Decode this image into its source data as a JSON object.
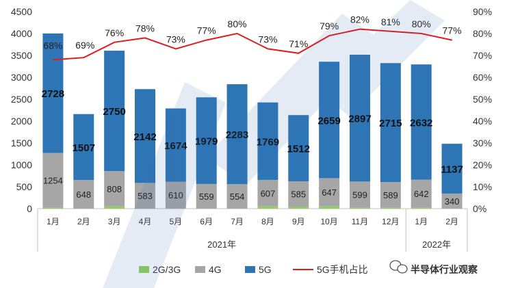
{
  "chart_data": {
    "type": "bar",
    "stacked": true,
    "categories": [
      "1月",
      "2月",
      "3月",
      "4月",
      "5月",
      "6月",
      "7月",
      "8月",
      "9月",
      "10月",
      "11月",
      "12月",
      "1月",
      "2月"
    ],
    "year_groups": [
      {
        "label": "2021年",
        "start": 0,
        "end": 11
      },
      {
        "label": "2022年",
        "start": 12,
        "end": 13
      }
    ],
    "series": [
      {
        "name": "2G/3G",
        "kind": "bar",
        "color": "#8fd15a",
        "values": [
          20,
          5,
          50,
          5,
          5,
          5,
          5,
          50,
          40,
          50,
          20,
          20,
          20,
          5
        ]
      },
      {
        "name": "4G",
        "kind": "bar",
        "color": "#a6a6a6",
        "values": [
          1254,
          648,
          808,
          583,
          610,
          559,
          554,
          607,
          585,
          647,
          599,
          589,
          642,
          340
        ]
      },
      {
        "name": "5G",
        "kind": "bar",
        "color": "#2e75b6",
        "values": [
          2728,
          1507,
          2750,
          2142,
          1674,
          1979,
          2283,
          1769,
          1512,
          2659,
          2897,
          2715,
          2632,
          1137
        ]
      },
      {
        "name": "5G手机占比",
        "kind": "line",
        "axis": "right",
        "color": "#e31a1c",
        "values": [
          68,
          69,
          76,
          78,
          73,
          77,
          80,
          73,
          71,
          79,
          82,
          81,
          80,
          77
        ]
      }
    ],
    "bar_labels": {
      "4G": [
        "1254",
        "648",
        "808",
        "583",
        "610",
        "559",
        "554",
        "607",
        "585",
        "647",
        "599",
        "589",
        "642",
        "340"
      ],
      "5G": [
        "2728",
        "1507",
        "2750",
        "2142",
        "1674",
        "1979",
        "2283",
        "1769",
        "1512",
        "2659",
        "2897",
        "2715",
        "2632",
        "1137"
      ],
      "line": [
        "68%",
        "69%",
        "76%",
        "78%",
        "73%",
        "77%",
        "80%",
        "73%",
        "71%",
        "79%",
        "82%",
        "81%",
        "80%",
        "77%"
      ]
    },
    "y_left": {
      "min": 0,
      "max": 4500,
      "ticks": [
        "0",
        "500",
        "1000",
        "1500",
        "2000",
        "2500",
        "3000",
        "3500",
        "4000",
        "4500"
      ]
    },
    "y_right": {
      "min": 0,
      "max": 90,
      "ticks": [
        "0%",
        "10%",
        "20%",
        "30%",
        "40%",
        "50%",
        "60%",
        "70%",
        "80%",
        "90%"
      ]
    },
    "grid": false,
    "legend_position": "bottom"
  },
  "watermark": {
    "text": "半导体行业观察",
    "icon": "wechat-bubble-icon"
  }
}
